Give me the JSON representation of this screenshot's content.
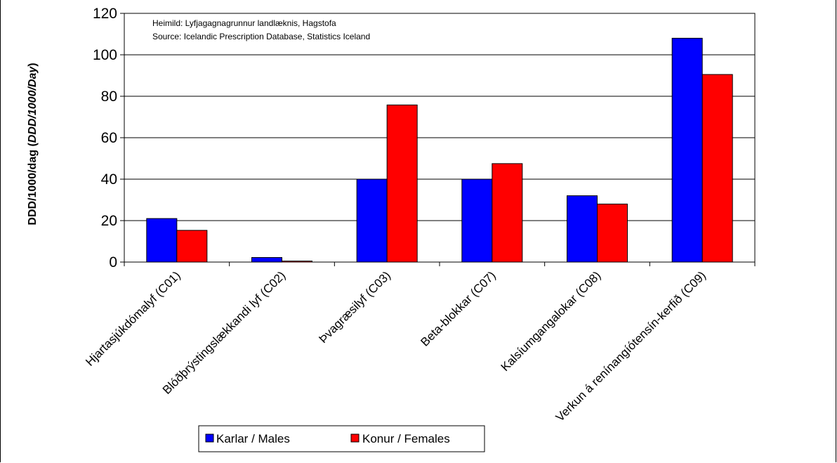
{
  "chart_data": {
    "type": "bar",
    "ylabel_main": "DDD/1000/dag (",
    "ylabel_italic": "DDD/1000/Day",
    "ylabel_close": ")",
    "ylim": [
      0,
      120
    ],
    "yticks": [
      "0",
      "20",
      "40",
      "60",
      "80",
      "100",
      "120"
    ],
    "grid": true,
    "legend_position": "bottom",
    "source_lines": [
      "Heimild: Lyfjagagnagrunnur landlæknis, Hagstofa",
      "Source: Icelandic Prescription Database, Statistics Iceland"
    ],
    "categories": [
      "Hjartasjúkdómalyf (C01)",
      "Blóðþrýstingslækkandi lyf (C02)",
      "Þvagræsilyf (C03)",
      "Beta-blokkar (C07)",
      "Kalsíumgangalokar (C08)",
      "Verkun á renínangíótensín-kerfið (C09)"
    ],
    "series": [
      {
        "name": "Karlar / Males",
        "color": "#0000ff",
        "values": [
          21,
          2.2,
          40,
          40,
          32,
          108
        ]
      },
      {
        "name": "Konur / Females",
        "color": "#ff0000",
        "values": [
          15.3,
          0.5,
          75.8,
          47.5,
          28,
          90.5
        ]
      }
    ]
  }
}
